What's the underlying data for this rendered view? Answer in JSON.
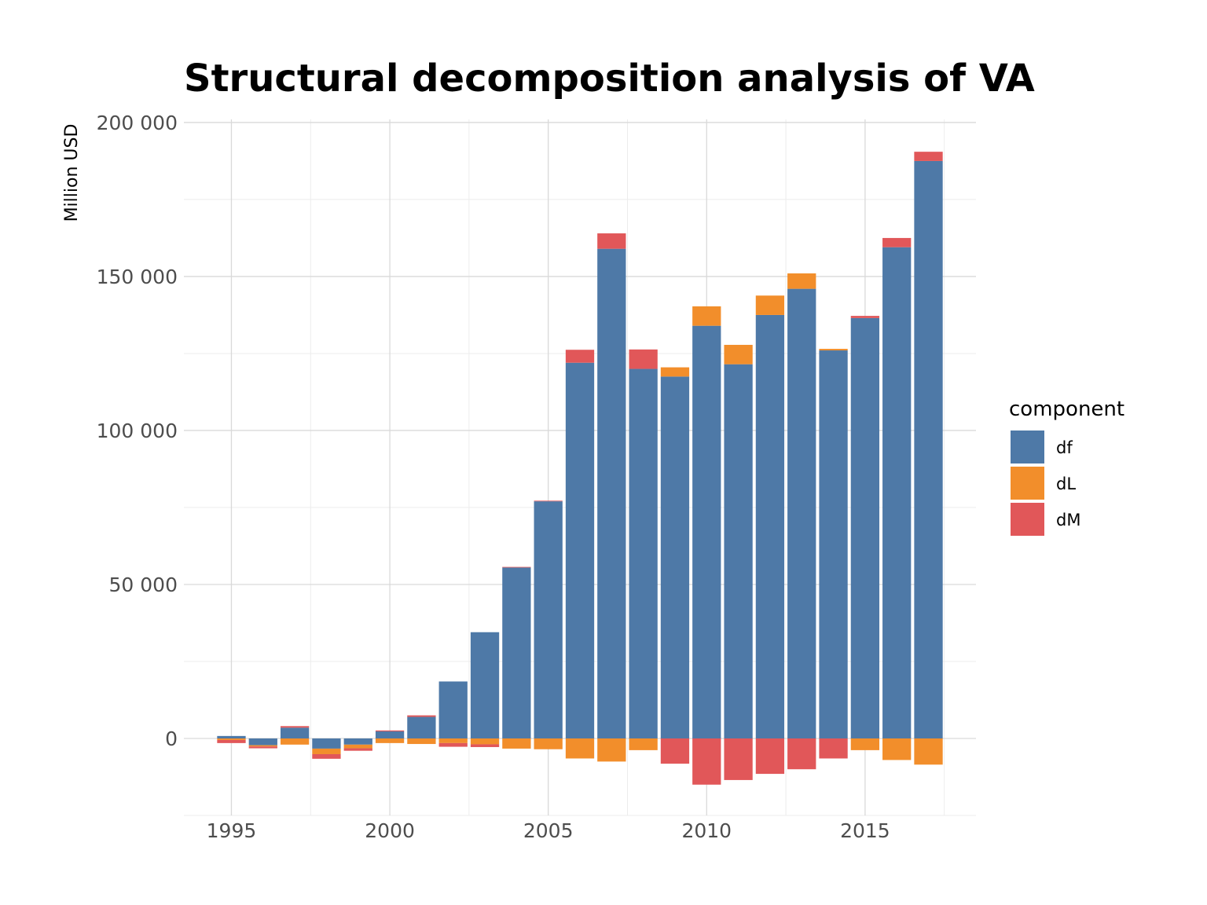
{
  "chart_data": {
    "type": "bar",
    "stacked": true,
    "title": "Structural decomposition analysis of VA",
    "xlabel": "",
    "ylabel": "Million USD",
    "x": [
      1995,
      1996,
      1997,
      1998,
      1999,
      2000,
      2001,
      2002,
      2003,
      2004,
      2005,
      2006,
      2007,
      2008,
      2009,
      2010,
      2011,
      2012,
      2013,
      2014,
      2015,
      2016,
      2017
    ],
    "xlim": [
      1993.5,
      2018.5
    ],
    "ylim": [
      -25000,
      201000
    ],
    "x_ticks": [
      1995,
      2000,
      2005,
      2010,
      2015
    ],
    "x_tick_labels": [
      "1995",
      "2000",
      "2005",
      "2010",
      "2015"
    ],
    "y_ticks": [
      0,
      50000,
      100000,
      150000,
      200000
    ],
    "y_tick_labels": [
      "0",
      "50 000",
      "100 000",
      "150 000",
      "200 000"
    ],
    "grid": true,
    "legend": {
      "title": "component",
      "position": "right"
    },
    "series": [
      {
        "name": "df",
        "color": "#4e79a7",
        "values": [
          800,
          -2200,
          3500,
          -3300,
          -2000,
          2300,
          7000,
          18500,
          34500,
          55500,
          77000,
          122000,
          159000,
          120000,
          117500,
          134000,
          121500,
          137500,
          146000,
          126000,
          136500,
          159500,
          187500
        ]
      },
      {
        "name": "dL",
        "color": "#f28e2b",
        "values": [
          -500,
          -400,
          -2000,
          -1800,
          -1200,
          -1500,
          -1800,
          -1500,
          -1900,
          -3300,
          -3500,
          -6500,
          -7500,
          -3800,
          3000,
          6300,
          6300,
          6300,
          5000,
          500,
          -3800,
          -7000,
          -8500
        ]
      },
      {
        "name": "dM",
        "color": "#e15759",
        "values": [
          -1000,
          -600,
          500,
          -1500,
          -800,
          300,
          500,
          -1200,
          -900,
          200,
          200,
          4200,
          5000,
          6300,
          -8200,
          -15000,
          -13500,
          -11500,
          -10000,
          -6500,
          700,
          3000,
          3000
        ]
      }
    ]
  }
}
